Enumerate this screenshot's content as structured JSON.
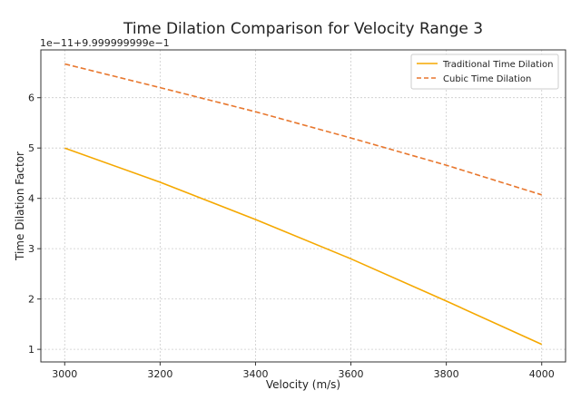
{
  "chart_data": {
    "type": "line",
    "title": "Time Dilation Comparison for Velocity Range 3",
    "xlabel": "Velocity (m/s)",
    "ylabel": "Time Dilation Factor",
    "y_offset_text": "1e−11+9.999999999e−1",
    "xlim": [
      2950,
      4050
    ],
    "ylim": [
      0.75,
      6.95
    ],
    "x_ticks": [
      3000,
      3200,
      3400,
      3600,
      3800,
      4000
    ],
    "y_ticks": [
      1,
      2,
      3,
      4,
      5,
      6
    ],
    "grid": true,
    "legend_position": "top-right",
    "x": [
      3000,
      3200,
      3400,
      3600,
      3800,
      4000
    ],
    "series": [
      {
        "name": "Traditional Time Dilation",
        "color": "#f5a800",
        "style": "solid",
        "values": [
          5.0,
          4.32,
          3.58,
          2.8,
          1.96,
          1.1
        ]
      },
      {
        "name": "Cubic Time Dilation",
        "color": "#e8772e",
        "style": "dashed",
        "values": [
          6.67,
          6.2,
          5.72,
          5.2,
          4.66,
          4.07
        ]
      }
    ]
  }
}
